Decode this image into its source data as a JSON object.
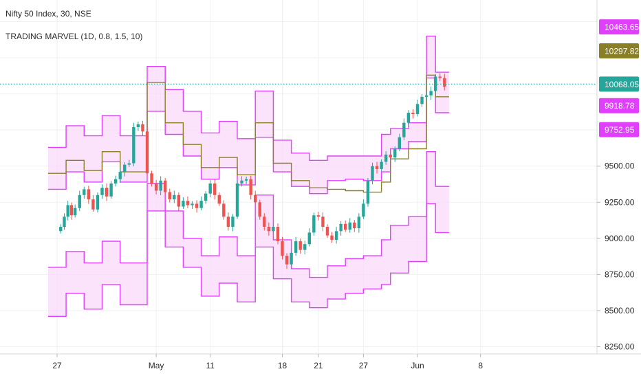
{
  "legend": {
    "symbol": "Nifty 50 Index, 30, NSE",
    "indicator": "TRADING MARVEL (1D, 0.8, 1.5, 10)"
  },
  "colors": {
    "band": "#e040fb",
    "band_fill": "#fbd9fb",
    "mid": "#8a7f24",
    "candle_up": "#26a69a",
    "candle_down": "#ef5350",
    "last_price_line": "#26a69a",
    "grid": "#eef0f3",
    "axis_text": "#2b2b2b"
  },
  "chart_data": {
    "type": "candlestick",
    "title": "Nifty 50 Index, 30, NSE",
    "indicator": "TRADING MARVEL (1D, 0.8, 1.5, 10)",
    "y_axis": {
      "ticks": [
        "9500.00",
        "9250.00",
        "9000.00",
        "8750.00",
        "8500.00",
        "8250.00"
      ],
      "range": [
        8200,
        10650
      ],
      "side": "right"
    },
    "x_axis": {
      "ticks": [
        "27",
        "May",
        "11",
        "18",
        "21",
        "27",
        "Jun",
        "8"
      ],
      "tick_index": [
        -2,
        9,
        15,
        23,
        27,
        32,
        38,
        45
      ]
    },
    "price_labels": [
      {
        "value": 10463.65,
        "text": "10463.65",
        "kind": "band"
      },
      {
        "value": 10297.82,
        "text": "10297.82",
        "kind": "mid"
      },
      {
        "value": 10068.05,
        "text": "10068.05",
        "kind": "last"
      },
      {
        "value": 9918.78,
        "text": "9918.78",
        "kind": "band"
      },
      {
        "value": 9752.95,
        "text": "9752.95",
        "kind": "band"
      }
    ],
    "last_price": 10068.05,
    "steps": {
      "days": [
        -3,
        -1,
        1,
        3,
        5,
        8,
        10,
        12,
        14,
        16,
        18,
        20,
        22,
        24,
        26,
        28,
        30,
        32,
        34,
        35,
        37,
        39,
        40
      ],
      "bands_upper": [
        {
          "name": "r2",
          "values": [
            9630,
            9780,
            9710,
            9850,
            9710,
            10190,
            10030,
            9880,
            9730,
            9810,
            9690,
            10020,
            9680,
            9590,
            9540,
            9570,
            9570,
            9570,
            9720,
            9760,
            9800,
            10400,
            10150
          ]
        },
        {
          "name": "r1",
          "values": [
            9340,
            9460,
            9390,
            9530,
            9390,
            9880,
            9720,
            9570,
            9410,
            9490,
            9370,
            9700,
            9460,
            9360,
            9310,
            9400,
            9410,
            9400,
            9460,
            9620,
            9670,
            10110,
            9870
          ]
        },
        {
          "name": "s1",
          "values": [
            8800,
            8910,
            8830,
            8980,
            8830,
            9380,
            9190,
            9000,
            8880,
            9010,
            8880,
            9300,
            8990,
            8790,
            8730,
            8810,
            8860,
            8880,
            8990,
            9090,
            9150,
            9600,
            9360
          ]
        },
        {
          "name": "s2",
          "values": [
            8460,
            8620,
            8510,
            8680,
            8540,
            9190,
            8940,
            8800,
            8600,
            8690,
            8560,
            8940,
            8720,
            8560,
            8520,
            8580,
            8620,
            8650,
            8680,
            8760,
            8840,
            9240,
            9040
          ]
        }
      ],
      "pivot": [
        9450,
        9540,
        9470,
        9600,
        9460,
        10080,
        9800,
        9650,
        9490,
        9560,
        9440,
        9800,
        9520,
        9400,
        9350,
        9340,
        9330,
        9320,
        9390,
        9550,
        9620,
        10130,
        9980
      ]
    },
    "candles_close": [
      {
        "x": -1.6,
        "c": 9080
      },
      {
        "x": -1.2,
        "c": 9150
      },
      {
        "x": -0.8,
        "c": 9230
      },
      {
        "x": -0.4,
        "c": 9160
      },
      {
        "x": 0,
        "c": 9210
      },
      {
        "x": 0.5,
        "c": 9300
      },
      {
        "x": 1,
        "c": 9340
      },
      {
        "x": 1.5,
        "c": 9270
      },
      {
        "x": 2,
        "c": 9200
      },
      {
        "x": 2.5,
        "c": 9300
      },
      {
        "x": 3,
        "c": 9350
      },
      {
        "x": 3.5,
        "c": 9290
      },
      {
        "x": 4,
        "c": 9380
      },
      {
        "x": 4.5,
        "c": 9410
      },
      {
        "x": 5,
        "c": 9460
      },
      {
        "x": 5.5,
        "c": 9510
      },
      {
        "x": 6,
        "c": 9520
      },
      {
        "x": 6.5,
        "c": 9770
      },
      {
        "x": 7,
        "c": 9790
      },
      {
        "x": 7.5,
        "c": 9740
      },
      {
        "x": 8,
        "c": 9450
      },
      {
        "x": 8.5,
        "c": 9380
      },
      {
        "x": 9,
        "c": 9330
      },
      {
        "x": 9.5,
        "c": 9400
      },
      {
        "x": 10,
        "c": 9320
      },
      {
        "x": 10.5,
        "c": 9270
      },
      {
        "x": 11,
        "c": 9300
      },
      {
        "x": 11.5,
        "c": 9220
      },
      {
        "x": 12,
        "c": 9260
      },
      {
        "x": 12.5,
        "c": 9230
      },
      {
        "x": 13,
        "c": 9240
      },
      {
        "x": 13.5,
        "c": 9210
      },
      {
        "x": 14,
        "c": 9260
      },
      {
        "x": 14.5,
        "c": 9310
      },
      {
        "x": 15,
        "c": 9380
      },
      {
        "x": 15.5,
        "c": 9300
      },
      {
        "x": 16,
        "c": 9240
      },
      {
        "x": 16.5,
        "c": 9150
      },
      {
        "x": 17,
        "c": 9080
      },
      {
        "x": 17.5,
        "c": 9150
      },
      {
        "x": 18,
        "c": 9380
      },
      {
        "x": 18.5,
        "c": 9400
      },
      {
        "x": 19,
        "c": 9410
      },
      {
        "x": 19.5,
        "c": 9300
      },
      {
        "x": 20,
        "c": 9250
      },
      {
        "x": 20.5,
        "c": 9150
      },
      {
        "x": 21,
        "c": 9080
      },
      {
        "x": 21.5,
        "c": 9050
      },
      {
        "x": 22,
        "c": 9080
      },
      {
        "x": 22.5,
        "c": 8980
      },
      {
        "x": 23,
        "c": 8880
      },
      {
        "x": 23.5,
        "c": 8820
      },
      {
        "x": 24,
        "c": 8900
      },
      {
        "x": 24.5,
        "c": 8980
      },
      {
        "x": 25,
        "c": 8920
      },
      {
        "x": 25.5,
        "c": 8960
      },
      {
        "x": 26,
        "c": 9040
      },
      {
        "x": 26.5,
        "c": 9160
      },
      {
        "x": 27,
        "c": 9150
      },
      {
        "x": 27.5,
        "c": 9080
      },
      {
        "x": 28,
        "c": 9020
      },
      {
        "x": 28.5,
        "c": 8990
      },
      {
        "x": 29,
        "c": 9050
      },
      {
        "x": 29.5,
        "c": 9100
      },
      {
        "x": 30,
        "c": 9060
      },
      {
        "x": 30.5,
        "c": 9110
      },
      {
        "x": 31,
        "c": 9070
      },
      {
        "x": 31.5,
        "c": 9150
      },
      {
        "x": 32,
        "c": 9240
      },
      {
        "x": 32.5,
        "c": 9400
      },
      {
        "x": 33,
        "c": 9500
      },
      {
        "x": 33.5,
        "c": 9480
      },
      {
        "x": 34,
        "c": 9530
      },
      {
        "x": 34.5,
        "c": 9580
      },
      {
        "x": 35,
        "c": 9560
      },
      {
        "x": 35.5,
        "c": 9620
      },
      {
        "x": 36,
        "c": 9700
      },
      {
        "x": 36.5,
        "c": 9800
      },
      {
        "x": 37,
        "c": 9870
      },
      {
        "x": 37.5,
        "c": 9860
      },
      {
        "x": 38,
        "c": 9930
      },
      {
        "x": 38.5,
        "c": 9980
      },
      {
        "x": 39,
        "c": 9990
      },
      {
        "x": 39.5,
        "c": 10020
      },
      {
        "x": 40,
        "c": 10120
      },
      {
        "x": 40.5,
        "c": 10110
      },
      {
        "x": 41,
        "c": 10050
      }
    ]
  }
}
